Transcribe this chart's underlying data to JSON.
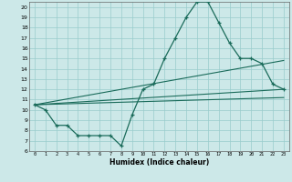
{
  "xlabel": "Humidex (Indice chaleur)",
  "bg_color": "#cce8e8",
  "grid_color": "#99cccc",
  "line_color": "#1a6b5a",
  "xlim": [
    -0.5,
    23.5
  ],
  "ylim": [
    6,
    20.5
  ],
  "xticks": [
    0,
    1,
    2,
    3,
    4,
    5,
    6,
    7,
    8,
    9,
    10,
    11,
    12,
    13,
    14,
    15,
    16,
    17,
    18,
    19,
    20,
    21,
    22,
    23
  ],
  "yticks": [
    6,
    7,
    8,
    9,
    10,
    11,
    12,
    13,
    14,
    15,
    16,
    17,
    18,
    19,
    20
  ],
  "series1_x": [
    0,
    1,
    2,
    3,
    4,
    5,
    6,
    7,
    8,
    9,
    10,
    11,
    12,
    13,
    14,
    15,
    16,
    17,
    18,
    19,
    20,
    21,
    22,
    23
  ],
  "series1_y": [
    10.5,
    10.0,
    8.5,
    8.5,
    7.5,
    7.5,
    7.5,
    7.5,
    6.5,
    9.5,
    12.0,
    12.5,
    15.0,
    17.0,
    19.0,
    20.5,
    20.5,
    18.5,
    16.5,
    15.0,
    15.0,
    14.5,
    12.5,
    12.0
  ],
  "line2_x": [
    0,
    23
  ],
  "line2_y": [
    10.5,
    14.8
  ],
  "line3_x": [
    0,
    23
  ],
  "line3_y": [
    10.5,
    12.0
  ],
  "line4_x": [
    0,
    23
  ],
  "line4_y": [
    10.5,
    11.2
  ]
}
